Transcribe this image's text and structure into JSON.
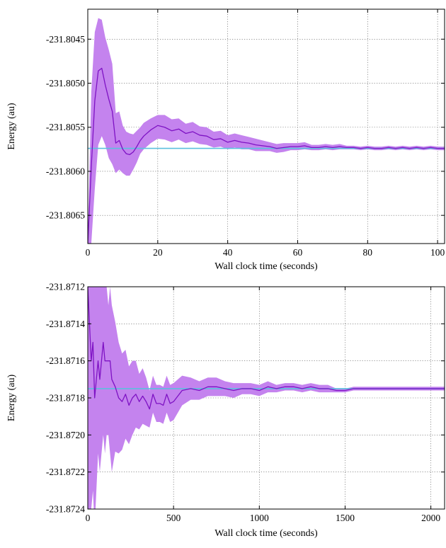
{
  "colors": {
    "band": "#c483ee",
    "mean": "#7e12c4",
    "reference": "#5bc0de",
    "grid": "#555555",
    "frame": "#000000"
  },
  "chart_data": [
    {
      "type": "line",
      "xlabel": "Wall clock time (seconds)",
      "ylabel": "Energy (au)",
      "xlim": [
        0,
        102
      ],
      "ylim": [
        -231.80682,
        -231.80416
      ],
      "xticks": [
        0,
        20,
        40,
        60,
        80,
        100
      ],
      "xtick_labels": [
        "0",
        "20",
        "40",
        "60",
        "80",
        "100"
      ],
      "yticks": [
        -231.8045,
        -231.805,
        -231.8055,
        -231.806,
        -231.8065
      ],
      "ytick_labels": [
        "-231.8045",
        "-231.8050",
        "-231.8055",
        "-231.8060",
        "-231.8065"
      ],
      "grid": true,
      "reference_line": -231.80574,
      "series": [
        {
          "x": [
            0,
            1,
            2,
            3,
            4,
            5,
            6,
            7,
            8,
            9,
            10,
            11,
            12,
            13,
            14,
            15,
            16,
            18,
            20,
            22,
            24,
            26,
            28,
            30,
            32,
            34,
            36,
            38,
            40,
            42,
            44,
            46,
            48,
            50,
            52,
            54,
            56,
            58,
            60,
            62,
            64,
            66,
            68,
            70,
            72,
            74,
            76,
            78,
            80,
            82,
            84,
            86,
            88,
            90,
            92,
            94,
            96,
            98,
            100,
            102
          ],
          "y": [
            -231.80682,
            -231.80595,
            -231.8052,
            -231.80486,
            -231.80483,
            -231.80502,
            -231.80518,
            -231.80532,
            -231.80568,
            -231.80565,
            -231.80575,
            -231.8058,
            -231.80581,
            -231.80578,
            -231.80572,
            -231.80565,
            -231.8056,
            -231.80553,
            -231.80548,
            -231.8055,
            -231.80554,
            -231.80552,
            -231.80557,
            -231.80555,
            -231.80559,
            -231.8056,
            -231.80564,
            -231.80563,
            -231.80567,
            -231.80565,
            -231.80567,
            -231.80568,
            -231.8057,
            -231.80571,
            -231.80572,
            -231.80574,
            -231.80573,
            -231.80572,
            -231.80572,
            -231.80571,
            -231.80573,
            -231.80573,
            -231.80572,
            -231.80573,
            -231.80572,
            -231.80573,
            -231.80573,
            -231.80574,
            -231.80573,
            -231.80574,
            -231.80574,
            -231.80573,
            -231.80574,
            -231.80573,
            -231.80574,
            -231.80573,
            -231.80574,
            -231.80573,
            -231.80574,
            -231.80574
          ],
          "lower": [
            -231.80682,
            -231.80682,
            -231.8062,
            -231.8057,
            -231.8056,
            -231.8057,
            -231.80585,
            -231.80592,
            -231.80602,
            -231.80598,
            -231.80602,
            -231.80605,
            -231.80605,
            -231.80598,
            -231.8059,
            -231.8058,
            -231.80575,
            -231.80568,
            -231.80563,
            -231.80564,
            -231.80567,
            -231.80564,
            -231.80568,
            -231.80566,
            -231.80569,
            -231.8057,
            -231.80573,
            -231.80572,
            -231.80575,
            -231.80573,
            -231.80575,
            -231.80575,
            -231.80577,
            -231.80577,
            -231.80577,
            -231.80579,
            -231.80578,
            -231.80576,
            -231.80576,
            -231.80575,
            -231.80576,
            -231.80576,
            -231.80575,
            -231.80576,
            -231.80575,
            -231.80575,
            -231.80575,
            -231.80576,
            -231.80575,
            -231.80576,
            -231.80576,
            -231.80575,
            -231.80576,
            -231.80575,
            -231.80576,
            -231.80575,
            -231.80576,
            -231.80575,
            -231.80576,
            -231.80576
          ],
          "upper": [
            -231.80682,
            -231.8051,
            -231.80442,
            -231.80426,
            -231.80428,
            -231.80448,
            -231.80462,
            -231.80478,
            -231.80534,
            -231.80532,
            -231.80548,
            -231.80555,
            -231.80557,
            -231.80558,
            -231.80554,
            -231.8055,
            -231.80545,
            -231.8054,
            -231.80536,
            -231.80536,
            -231.80541,
            -231.8054,
            -231.80546,
            -231.80544,
            -231.80549,
            -231.8055,
            -231.80555,
            -231.80554,
            -231.80559,
            -231.80557,
            -231.80559,
            -231.80561,
            -231.80563,
            -231.80565,
            -231.80567,
            -231.80569,
            -231.80568,
            -231.80568,
            -231.80568,
            -231.80567,
            -231.8057,
            -231.8057,
            -231.80569,
            -231.8057,
            -231.80569,
            -231.80571,
            -231.80571,
            -231.80572,
            -231.80571,
            -231.80572,
            -231.80572,
            -231.80571,
            -231.80572,
            -231.80571,
            -231.80572,
            -231.80571,
            -231.80572,
            -231.80571,
            -231.80572,
            -231.80572
          ]
        }
      ]
    },
    {
      "type": "line",
      "xlabel": "Wall clock time (seconds)",
      "ylabel": "Energy (au)",
      "xlim": [
        0,
        2080
      ],
      "ylim": [
        -231.8724,
        -231.8712
      ],
      "xticks": [
        0,
        500,
        1000,
        1500,
        2000
      ],
      "xtick_labels": [
        "0",
        "500",
        "1000",
        "1500",
        "2000"
      ],
      "yticks": [
        -231.8712,
        -231.8714,
        -231.8716,
        -231.8718,
        -231.872,
        -231.8722,
        -231.8724
      ],
      "ytick_labels": [
        "-231.8712",
        "-231.8714",
        "-231.8716",
        "-231.8718",
        "-231.8720",
        "-231.8722",
        "-231.8724"
      ],
      "grid": true,
      "reference_line": -231.87175,
      "series": [
        {
          "x": [
            0,
            10,
            20,
            30,
            40,
            50,
            60,
            70,
            80,
            90,
            100,
            110,
            120,
            130,
            140,
            160,
            180,
            200,
            220,
            240,
            260,
            280,
            300,
            320,
            340,
            360,
            380,
            400,
            420,
            440,
            460,
            480,
            500,
            550,
            600,
            650,
            700,
            750,
            800,
            850,
            900,
            950,
            1000,
            1050,
            1100,
            1150,
            1200,
            1250,
            1300,
            1350,
            1400,
            1450,
            1500,
            1550,
            1600,
            1650,
            1700,
            1750,
            1800,
            1850,
            1900,
            1950,
            2000,
            2050,
            2080
          ],
          "y": [
            -231.8712,
            -231.8714,
            -231.8716,
            -231.8715,
            -231.8718,
            -231.8717,
            -231.8716,
            -231.8717,
            -231.8716,
            -231.8715,
            -231.8716,
            -231.8716,
            -231.8716,
            -231.8716,
            -231.8717,
            -231.87174,
            -231.8718,
            -231.87182,
            -231.87178,
            -231.87184,
            -231.8718,
            -231.87178,
            -231.87182,
            -231.87179,
            -231.87182,
            -231.87186,
            -231.87178,
            -231.87183,
            -231.87183,
            -231.87184,
            -231.87178,
            -231.87183,
            -231.87182,
            -231.87176,
            -231.87175,
            -231.87176,
            -231.87174,
            -231.87174,
            -231.87175,
            -231.87176,
            -231.87175,
            -231.87175,
            -231.87176,
            -231.87174,
            -231.87175,
            -231.87174,
            -231.87174,
            -231.87175,
            -231.87174,
            -231.87175,
            -231.87175,
            -231.87176,
            -231.87176,
            -231.87175,
            -231.87175,
            -231.87175,
            -231.87175,
            -231.87175,
            -231.87175,
            -231.87175,
            -231.87175,
            -231.87175,
            -231.87175,
            -231.87175,
            -231.87175
          ],
          "lower": [
            -231.8724,
            -231.8724,
            -231.8724,
            -231.8723,
            -231.8725,
            -231.8723,
            -231.8721,
            -231.8722,
            -231.8721,
            -231.872,
            -231.8721,
            -231.872,
            -231.872,
            -231.8721,
            -231.8722,
            -231.87209,
            -231.8721,
            -231.87208,
            -231.87202,
            -231.87205,
            -231.872,
            -231.87196,
            -231.87197,
            -231.87194,
            -231.87195,
            -231.87196,
            -231.87188,
            -231.87193,
            -231.87193,
            -231.87194,
            -231.87188,
            -231.87193,
            -231.87192,
            -231.87184,
            -231.87181,
            -231.87181,
            -231.87179,
            -231.87179,
            -231.87179,
            -231.8718,
            -231.87178,
            -231.87178,
            -231.87179,
            -231.87177,
            -231.87177,
            -231.87176,
            -231.87176,
            -231.87177,
            -231.87176,
            -231.87177,
            -231.87177,
            -231.87177,
            -231.87177,
            -231.87176,
            -231.87176,
            -231.87176,
            -231.87176,
            -231.87176,
            -231.87176,
            -231.87176,
            -231.87176,
            -231.87176,
            -231.87176,
            -231.87176,
            -231.87176
          ],
          "upper": [
            -231.8712,
            -231.8712,
            -231.8712,
            -231.8712,
            -231.8712,
            -231.8712,
            -231.8712,
            -231.8712,
            -231.8712,
            -231.8712,
            -231.8712,
            -231.8712,
            -231.8713,
            -231.8712,
            -231.8713,
            -231.87139,
            -231.8715,
            -231.87156,
            -231.87154,
            -231.87163,
            -231.8716,
            -231.8716,
            -231.87167,
            -231.87164,
            -231.87169,
            -231.87176,
            -231.87168,
            -231.87173,
            -231.87173,
            -231.87174,
            -231.87168,
            -231.87173,
            -231.87172,
            -231.87168,
            -231.87169,
            -231.87171,
            -231.87169,
            -231.87169,
            -231.87171,
            -231.87172,
            -231.87172,
            -231.87172,
            -231.87173,
            -231.87171,
            -231.87173,
            -231.87172,
            -231.87172,
            -231.87173,
            -231.87172,
            -231.87173,
            -231.87173,
            -231.87175,
            -231.87175,
            -231.87174,
            -231.87174,
            -231.87174,
            -231.87174,
            -231.87174,
            -231.87174,
            -231.87174,
            -231.87174,
            -231.87174,
            -231.87174,
            -231.87174,
            -231.87174
          ]
        }
      ]
    }
  ]
}
